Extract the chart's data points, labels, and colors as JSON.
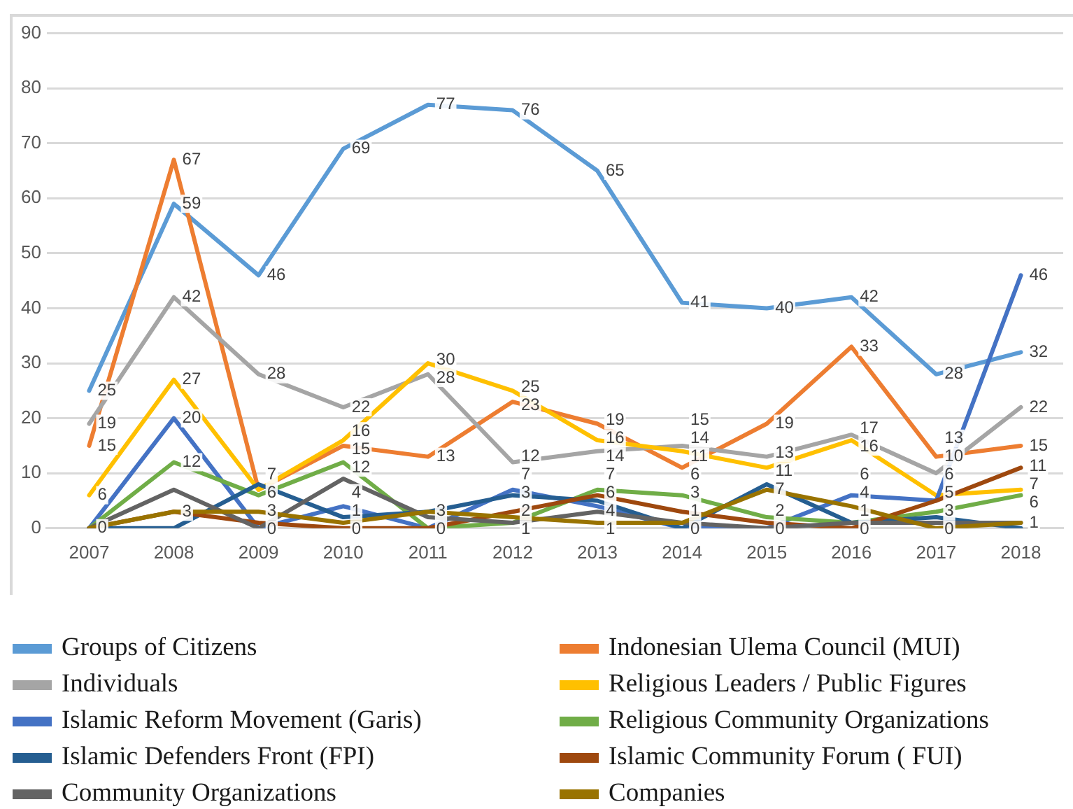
{
  "chart_data": {
    "type": "line",
    "categories": [
      "2007",
      "2008",
      "2009",
      "2010",
      "2011",
      "2012",
      "2013",
      "2014",
      "2015",
      "2016",
      "2017",
      "2018"
    ],
    "series": [
      {
        "name": "Groups of Citizens",
        "color": "#5b9bd5",
        "values": [
          25,
          59,
          46,
          69,
          77,
          76,
          65,
          41,
          40,
          42,
          28,
          32
        ],
        "value_labels": [
          "25",
          "59",
          "46",
          "69",
          "77",
          "76",
          "65",
          "41",
          "40",
          "42",
          "28",
          "32"
        ]
      },
      {
        "name": "Indonesian Ulema Council (MUI)",
        "color": "#ed7d31",
        "values": [
          15,
          67,
          7,
          15,
          13,
          23,
          19,
          11,
          19,
          33,
          13,
          15
        ],
        "value_labels": [
          "15",
          "67",
          null,
          "15",
          "13",
          "23",
          "19",
          "11",
          "19",
          "33",
          "13",
          "15"
        ]
      },
      {
        "name": "Individuals",
        "color": "#a5a5a5",
        "values": [
          19,
          42,
          28,
          22,
          28,
          12,
          14,
          15,
          13,
          17,
          10,
          22
        ],
        "value_labels": [
          "19",
          "42",
          "28",
          "22",
          "28",
          "12",
          "14",
          "15",
          "13",
          "17",
          "10",
          "22"
        ]
      },
      {
        "name": "Religious Leaders / Public Figures",
        "color": "#ffc000",
        "values": [
          6,
          27,
          7,
          16,
          30,
          25,
          16,
          14,
          11,
          16,
          6,
          7
        ],
        "value_labels": [
          "6",
          "27",
          "7",
          "16",
          "30",
          "25",
          "16",
          "14",
          "11",
          "16",
          "6",
          "7"
        ]
      },
      {
        "name": "Islamic Reform Movement (Garis)",
        "color": "#4472c4",
        "values": [
          0,
          20,
          0,
          4,
          0,
          7,
          4,
          0,
          0,
          6,
          5,
          46
        ],
        "value_labels": [
          "0",
          "20",
          "0",
          "4",
          null,
          "7",
          "4",
          "0",
          "0",
          "6",
          null,
          "46"
        ]
      },
      {
        "name": "Religious Community Organizations",
        "color": "#70ad47",
        "values": [
          0,
          12,
          6,
          12,
          0,
          1,
          7,
          6,
          2,
          1,
          3,
          6
        ],
        "value_labels": [
          null,
          "12",
          "6",
          "12",
          null,
          "1",
          "7",
          "6",
          "2",
          "1",
          "3",
          "6"
        ]
      },
      {
        "name": "Islamic Defenders Front (FPI)",
        "color": "#255e91",
        "values": [
          0,
          0,
          8,
          2,
          3,
          6,
          5,
          0,
          8,
          1,
          2,
          0
        ]
      },
      {
        "name": "Islamic Community Forum ( FUI)",
        "color": "#9e480e",
        "values": [
          0,
          3,
          1,
          0,
          0,
          3,
          6,
          3,
          1,
          0,
          5,
          11
        ],
        "value_labels": [
          null,
          null,
          null,
          "0",
          "0",
          "3",
          "6",
          "3",
          null,
          "0",
          "5",
          "11"
        ]
      },
      {
        "name": "Community Organizations",
        "color": "#636363",
        "values": [
          0,
          7,
          0,
          9,
          2,
          1,
          3,
          1,
          0,
          1,
          1,
          1
        ]
      },
      {
        "name": "Companies",
        "color": "#997300",
        "values": [
          0,
          3,
          3,
          1,
          3,
          2,
          1,
          1,
          7,
          4,
          0,
          1
        ],
        "value_labels": [
          null,
          "3",
          "3",
          "1",
          "3",
          "2",
          "1",
          "1",
          "7",
          "4",
          "0",
          "1"
        ]
      }
    ],
    "ylim": [
      0,
      90
    ],
    "yticks": [
      0,
      10,
      20,
      30,
      40,
      50,
      60,
      70,
      80,
      90
    ],
    "grid": "y",
    "legend": "bottom",
    "marker": "none",
    "line_style": "solid"
  }
}
